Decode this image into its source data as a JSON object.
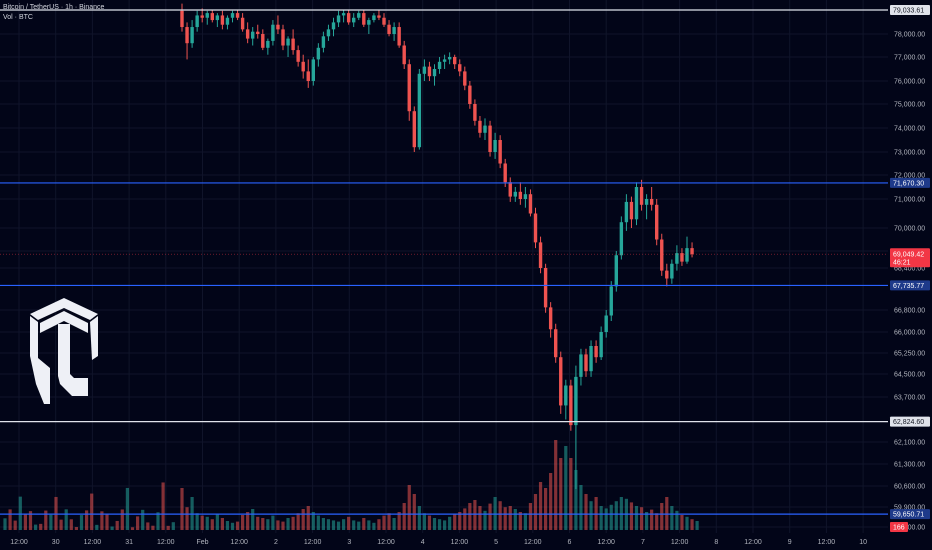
{
  "legend": {
    "symbol_line": "Bitcoin / TetherUS · 1h · Binance",
    "volume_line": "Vol · BTC"
  },
  "colors": {
    "up": "#26a69a",
    "down": "#ef5350",
    "background": "#020518",
    "grid": "#10142a",
    "hline_white": "#e0e3eb",
    "hline_blue": "#2962ff",
    "price_tag": "#f23645"
  },
  "logo": {
    "icon": "shield-helmet-logo-icon"
  },
  "chart_data": {
    "type": "candlestick",
    "interval": "1h",
    "y_axis_labels": [
      "79,033.61",
      "78,000.00",
      "77,000.00",
      "76,000.00",
      "75,000.00",
      "74,000.00",
      "73,000.00",
      "72,000.00",
      "71,670.30",
      "71,000.00",
      "70,000.00",
      "69,200.00",
      "69,049.42",
      "68,400.00",
      "67,735.77",
      "66,800.00",
      "66,000.00",
      "65,250.00",
      "64,500.00",
      "63,700.00",
      "62,824.60",
      "62,100.00",
      "61,300.00",
      "60,600.00",
      "59,900.00",
      "59,650.71",
      "59,200.00"
    ],
    "y_ticks": [
      78000,
      77000,
      76000,
      75000,
      74000,
      73000,
      72000,
      71000,
      70000,
      69200,
      68400,
      66800,
      66000,
      65250,
      64500,
      63700,
      62100,
      61300,
      60600,
      59900,
      59200
    ],
    "x_axis_labels": [
      "12:00",
      "30",
      "12:00",
      "31",
      "12:00",
      "Feb",
      "12:00",
      "2",
      "12:00",
      "3",
      "12:00",
      "4",
      "12:00",
      "5",
      "12:00",
      "6",
      "12:00",
      "7",
      "12:00",
      "8",
      "12:00",
      "9",
      "12:00",
      "10"
    ],
    "horizontal_lines": [
      {
        "price": 79033.61,
        "label": "79,033.61",
        "color": "white"
      },
      {
        "price": 71670.3,
        "label": "71,670.30",
        "color": "blue"
      },
      {
        "price": 67735.77,
        "label": "67,735.77",
        "color": "blue"
      },
      {
        "price": 62824.6,
        "label": "62,824.60",
        "color": "white"
      },
      {
        "price": 59650.71,
        "label": "59,650.71",
        "color": "blue"
      }
    ],
    "current_price": {
      "price": 69049.42,
      "label": "69,049.42",
      "countdown": "46:21"
    },
    "current_volume_label": "166",
    "grid": true,
    "series": [
      {
        "o": 79000,
        "h": 79300,
        "l": 78100,
        "c": 78300
      },
      {
        "o": 78300,
        "h": 78500,
        "l": 76900,
        "c": 77600
      },
      {
        "o": 77600,
        "h": 78600,
        "l": 77400,
        "c": 78300
      },
      {
        "o": 78300,
        "h": 79000,
        "l": 78100,
        "c": 78800
      },
      {
        "o": 78800,
        "h": 79100,
        "l": 78500,
        "c": 78700
      },
      {
        "o": 78700,
        "h": 79000,
        "l": 78400,
        "c": 78900
      },
      {
        "o": 78900,
        "h": 79050,
        "l": 78500,
        "c": 78600
      },
      {
        "o": 78600,
        "h": 78900,
        "l": 78300,
        "c": 78800
      },
      {
        "o": 78800,
        "h": 79000,
        "l": 78200,
        "c": 78400
      },
      {
        "o": 78400,
        "h": 78800,
        "l": 78200,
        "c": 78700
      },
      {
        "o": 78700,
        "h": 79000,
        "l": 78500,
        "c": 78900
      },
      {
        "o": 78900,
        "h": 79050,
        "l": 78600,
        "c": 78700
      },
      {
        "o": 78700,
        "h": 78900,
        "l": 78100,
        "c": 78200
      },
      {
        "o": 78200,
        "h": 78500,
        "l": 77600,
        "c": 77800
      },
      {
        "o": 77800,
        "h": 78300,
        "l": 77500,
        "c": 78100
      },
      {
        "o": 78100,
        "h": 78400,
        "l": 77800,
        "c": 78000
      },
      {
        "o": 78000,
        "h": 78200,
        "l": 77300,
        "c": 77400
      },
      {
        "o": 77400,
        "h": 77800,
        "l": 77100,
        "c": 77700
      },
      {
        "o": 77700,
        "h": 78600,
        "l": 77500,
        "c": 78400
      },
      {
        "o": 78400,
        "h": 78800,
        "l": 78000,
        "c": 78200
      },
      {
        "o": 78200,
        "h": 78400,
        "l": 77300,
        "c": 77500
      },
      {
        "o": 77500,
        "h": 77900,
        "l": 77000,
        "c": 77800
      },
      {
        "o": 77800,
        "h": 78200,
        "l": 77100,
        "c": 77300
      },
      {
        "o": 77300,
        "h": 77500,
        "l": 76600,
        "c": 76800
      },
      {
        "o": 76800,
        "h": 77100,
        "l": 76100,
        "c": 76400
      },
      {
        "o": 76400,
        "h": 76900,
        "l": 75700,
        "c": 76000
      },
      {
        "o": 76000,
        "h": 77000,
        "l": 75800,
        "c": 76900
      },
      {
        "o": 76900,
        "h": 77600,
        "l": 76600,
        "c": 77400
      },
      {
        "o": 77400,
        "h": 78100,
        "l": 77200,
        "c": 77900
      },
      {
        "o": 77900,
        "h": 78400,
        "l": 77700,
        "c": 78200
      },
      {
        "o": 78200,
        "h": 78700,
        "l": 77900,
        "c": 78500
      },
      {
        "o": 78500,
        "h": 79000,
        "l": 78300,
        "c": 78800
      },
      {
        "o": 78800,
        "h": 79050,
        "l": 78500,
        "c": 78900
      },
      {
        "o": 78900,
        "h": 79050,
        "l": 78400,
        "c": 78500
      },
      {
        "o": 78500,
        "h": 78900,
        "l": 78300,
        "c": 78700
      },
      {
        "o": 78700,
        "h": 79000,
        "l": 78600,
        "c": 78900
      },
      {
        "o": 78900,
        "h": 79050,
        "l": 78300,
        "c": 78400
      },
      {
        "o": 78400,
        "h": 78700,
        "l": 78000,
        "c": 78600
      },
      {
        "o": 78600,
        "h": 78900,
        "l": 78500,
        "c": 78800
      },
      {
        "o": 78800,
        "h": 79050,
        "l": 78600,
        "c": 78700
      },
      {
        "o": 78700,
        "h": 78900,
        "l": 78300,
        "c": 78400
      },
      {
        "o": 78400,
        "h": 78600,
        "l": 77900,
        "c": 78000
      },
      {
        "o": 78000,
        "h": 78500,
        "l": 77700,
        "c": 78300
      },
      {
        "o": 78300,
        "h": 78500,
        "l": 77400,
        "c": 77500
      },
      {
        "o": 77500,
        "h": 77700,
        "l": 76500,
        "c": 76700
      },
      {
        "o": 76700,
        "h": 76900,
        "l": 74300,
        "c": 74700
      },
      {
        "o": 74700,
        "h": 74900,
        "l": 73000,
        "c": 73200
      },
      {
        "o": 73200,
        "h": 76500,
        "l": 73100,
        "c": 76300
      },
      {
        "o": 76300,
        "h": 76900,
        "l": 76000,
        "c": 76600
      },
      {
        "o": 76600,
        "h": 76800,
        "l": 76000,
        "c": 76200
      },
      {
        "o": 76200,
        "h": 76700,
        "l": 75800,
        "c": 76500
      },
      {
        "o": 76500,
        "h": 77000,
        "l": 76300,
        "c": 76800
      },
      {
        "o": 76800,
        "h": 77100,
        "l": 76500,
        "c": 76900
      },
      {
        "o": 76900,
        "h": 77200,
        "l": 76700,
        "c": 77000
      },
      {
        "o": 77000,
        "h": 77100,
        "l": 76500,
        "c": 76700
      },
      {
        "o": 76700,
        "h": 76900,
        "l": 76200,
        "c": 76400
      },
      {
        "o": 76400,
        "h": 76600,
        "l": 75600,
        "c": 75800
      },
      {
        "o": 75800,
        "h": 76000,
        "l": 74800,
        "c": 75000
      },
      {
        "o": 75000,
        "h": 75200,
        "l": 74100,
        "c": 74300
      },
      {
        "o": 74300,
        "h": 74500,
        "l": 73600,
        "c": 73800
      },
      {
        "o": 73800,
        "h": 74400,
        "l": 73500,
        "c": 74100
      },
      {
        "o": 74100,
        "h": 74300,
        "l": 72800,
        "c": 73000
      },
      {
        "o": 73000,
        "h": 73800,
        "l": 72700,
        "c": 73500
      },
      {
        "o": 73500,
        "h": 73700,
        "l": 72300,
        "c": 72500
      },
      {
        "o": 72500,
        "h": 72700,
        "l": 71500,
        "c": 71700
      },
      {
        "o": 71700,
        "h": 71900,
        "l": 70900,
        "c": 71100
      },
      {
        "o": 71100,
        "h": 71500,
        "l": 70900,
        "c": 71300
      },
      {
        "o": 71300,
        "h": 71700,
        "l": 70800,
        "c": 71000
      },
      {
        "o": 71000,
        "h": 71500,
        "l": 70700,
        "c": 71200
      },
      {
        "o": 71200,
        "h": 71400,
        "l": 70400,
        "c": 70500
      },
      {
        "o": 70500,
        "h": 70700,
        "l": 69300,
        "c": 69500
      },
      {
        "o": 69500,
        "h": 69700,
        "l": 68200,
        "c": 68400
      },
      {
        "o": 68400,
        "h": 68600,
        "l": 66700,
        "c": 66900
      },
      {
        "o": 66900,
        "h": 67100,
        "l": 65800,
        "c": 66100
      },
      {
        "o": 66100,
        "h": 66300,
        "l": 64900,
        "c": 65100
      },
      {
        "o": 65100,
        "h": 65300,
        "l": 63100,
        "c": 63400
      },
      {
        "o": 63400,
        "h": 64300,
        "l": 62900,
        "c": 64100
      },
      {
        "o": 64100,
        "h": 64300,
        "l": 62500,
        "c": 62700
      },
      {
        "o": 62700,
        "h": 64800,
        "l": 60500,
        "c": 64400
      },
      {
        "o": 64400,
        "h": 65400,
        "l": 64100,
        "c": 65200
      },
      {
        "o": 65200,
        "h": 65400,
        "l": 64400,
        "c": 64600
      },
      {
        "o": 64600,
        "h": 65700,
        "l": 64400,
        "c": 65500
      },
      {
        "o": 65500,
        "h": 65700,
        "l": 64900,
        "c": 65100
      },
      {
        "o": 65100,
        "h": 66200,
        "l": 65000,
        "c": 66000
      },
      {
        "o": 66000,
        "h": 66800,
        "l": 65800,
        "c": 66600
      },
      {
        "o": 66600,
        "h": 67900,
        "l": 66400,
        "c": 67700
      },
      {
        "o": 67700,
        "h": 69200,
        "l": 67500,
        "c": 69000
      },
      {
        "o": 69000,
        "h": 70400,
        "l": 68800,
        "c": 70200
      },
      {
        "o": 70200,
        "h": 71200,
        "l": 69900,
        "c": 70900
      },
      {
        "o": 70900,
        "h": 71100,
        "l": 70000,
        "c": 70300
      },
      {
        "o": 70300,
        "h": 71700,
        "l": 70100,
        "c": 71500
      },
      {
        "o": 71500,
        "h": 71800,
        "l": 70600,
        "c": 70800
      },
      {
        "o": 70800,
        "h": 71200,
        "l": 70300,
        "c": 71000
      },
      {
        "o": 71000,
        "h": 71500,
        "l": 70600,
        "c": 70800
      },
      {
        "o": 70800,
        "h": 71000,
        "l": 69400,
        "c": 69600
      },
      {
        "o": 69600,
        "h": 69800,
        "l": 68100,
        "c": 68300
      },
      {
        "o": 68300,
        "h": 68600,
        "l": 67700,
        "c": 68000
      },
      {
        "o": 68000,
        "h": 68800,
        "l": 67800,
        "c": 68600
      },
      {
        "o": 68600,
        "h": 69400,
        "l": 68300,
        "c": 69100
      },
      {
        "o": 69100,
        "h": 69300,
        "l": 68500,
        "c": 68700
      },
      {
        "o": 68700,
        "h": 69700,
        "l": 68600,
        "c": 69300
      },
      {
        "o": 69300,
        "h": 69500,
        "l": 68900,
        "c": 69049
      }
    ],
    "volume": [
      70,
      38,
      55,
      28,
      24,
      22,
      18,
      26,
      20,
      15,
      12,
      14,
      25,
      30,
      35,
      22,
      20,
      18,
      24,
      16,
      14,
      20,
      22,
      28,
      35,
      40,
      30,
      24,
      20,
      18,
      16,
      14,
      18,
      22,
      16,
      14,
      20,
      16,
      12,
      18,
      24,
      28,
      20,
      30,
      45,
      75,
      60,
      40,
      28,
      24,
      20,
      18,
      16,
      22,
      26,
      30,
      36,
      45,
      50,
      40,
      32,
      44,
      55,
      48,
      38,
      40,
      35,
      30,
      28,
      45,
      60,
      80,
      70,
      95,
      150,
      120,
      140,
      120,
      100,
      75,
      60,
      48,
      55,
      40,
      36,
      42,
      48,
      55,
      52,
      46,
      40,
      38,
      30,
      34,
      28,
      45,
      55,
      40,
      32,
      25,
      22,
      18,
      15
    ]
  }
}
